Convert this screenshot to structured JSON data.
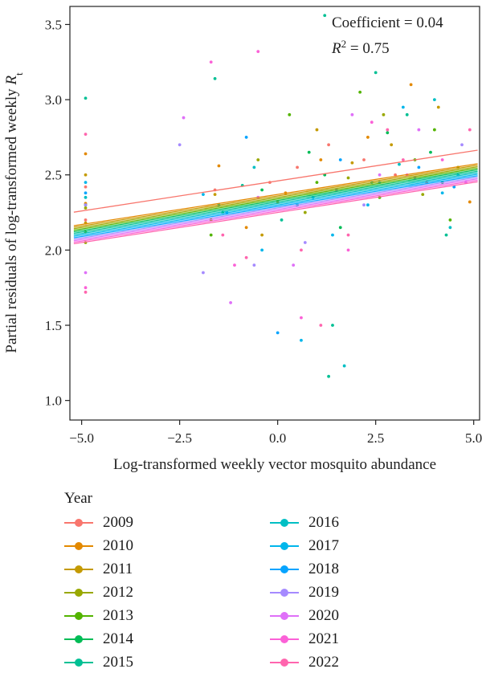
{
  "chart_data": {
    "type": "scatter",
    "xlabel": "Log-transformed weekly vector mosquito abundance",
    "ylabel_main": "Partial residuals of log-transformed weekly ",
    "ylabel_var": "R",
    "ylabel_sub": "t",
    "xlim": [
      -5.3,
      5.15
    ],
    "ylim": [
      0.87,
      3.62
    ],
    "x_ticks": [
      -5.0,
      -2.5,
      0.0,
      2.5,
      5.0
    ],
    "x_tick_labels": [
      "−5.0",
      "−2.5",
      "0.0",
      "2.5",
      "5.0"
    ],
    "y_ticks": [
      1.0,
      1.5,
      2.0,
      2.5,
      3.0,
      3.5
    ],
    "y_tick_labels": [
      "1.0",
      "1.5",
      "2.0",
      "2.5",
      "3.0",
      "3.5"
    ],
    "annotation": {
      "coefficient": "Coefficient = 0.04",
      "r2_prefix": "R",
      "r2_sup": "2",
      "r2_suffix": " = 0.75"
    },
    "legend_title": "Year",
    "slope": 0.04,
    "series": [
      {
        "name": "2009",
        "color": "#F8766D",
        "intercept": 2.46,
        "points": [
          [
            -4.9,
            2.42
          ],
          [
            -4.9,
            2.2
          ],
          [
            -1.6,
            2.4
          ],
          [
            -0.2,
            2.45
          ],
          [
            0.5,
            2.55
          ],
          [
            1.3,
            2.7
          ],
          [
            2.2,
            2.6
          ],
          [
            3.0,
            2.5
          ],
          [
            3.8,
            2.45
          ]
        ]
      },
      {
        "name": "2010",
        "color": "#E38900",
        "intercept": 2.37,
        "points": [
          [
            -4.9,
            2.64
          ],
          [
            -4.9,
            2.31
          ],
          [
            -1.5,
            2.56
          ],
          [
            0.2,
            2.38
          ],
          [
            1.1,
            2.6
          ],
          [
            2.3,
            2.75
          ],
          [
            3.4,
            3.1
          ],
          [
            4.9,
            2.32
          ],
          [
            -0.8,
            2.15
          ]
        ]
      },
      {
        "name": "2011",
        "color": "#C49A00",
        "intercept": 2.36,
        "points": [
          [
            -4.9,
            2.5
          ],
          [
            -4.9,
            2.18
          ],
          [
            -1.6,
            2.37
          ],
          [
            0.0,
            2.32
          ],
          [
            1.0,
            2.8
          ],
          [
            1.9,
            2.58
          ],
          [
            2.9,
            2.7
          ],
          [
            4.1,
            2.95
          ],
          [
            -0.4,
            2.1
          ]
        ]
      },
      {
        "name": "2012",
        "color": "#99A800",
        "intercept": 2.35,
        "points": [
          [
            -4.9,
            2.28
          ],
          [
            -4.9,
            2.05
          ],
          [
            -1.7,
            2.2
          ],
          [
            -0.5,
            2.6
          ],
          [
            0.7,
            2.25
          ],
          [
            1.8,
            2.48
          ],
          [
            2.7,
            2.9
          ],
          [
            3.7,
            2.37
          ],
          [
            4.6,
            2.55
          ]
        ]
      },
      {
        "name": "2013",
        "color": "#53B400",
        "intercept": 2.34,
        "points": [
          [
            -4.9,
            2.12
          ],
          [
            -1.7,
            2.1
          ],
          [
            0.3,
            2.9
          ],
          [
            1.0,
            2.45
          ],
          [
            2.1,
            3.05
          ],
          [
            2.6,
            2.35
          ],
          [
            3.5,
            2.6
          ],
          [
            4.0,
            2.8
          ],
          [
            4.4,
            2.2
          ]
        ]
      },
      {
        "name": "2014",
        "color": "#00BC56",
        "intercept": 2.33,
        "points": [
          [
            -4.9,
            2.3
          ],
          [
            -1.4,
            2.25
          ],
          [
            -0.4,
            2.4
          ],
          [
            0.8,
            2.65
          ],
          [
            1.2,
            2.5
          ],
          [
            1.6,
            2.15
          ],
          [
            2.8,
            2.78
          ],
          [
            3.9,
            2.65
          ],
          [
            4.2,
            2.45
          ]
        ]
      },
      {
        "name": "2015",
        "color": "#00C094",
        "intercept": 2.32,
        "points": [
          [
            -4.9,
            3.01
          ],
          [
            -1.6,
            3.14
          ],
          [
            -0.9,
            2.43
          ],
          [
            0.1,
            2.2
          ],
          [
            1.2,
            3.56
          ],
          [
            1.4,
            1.5
          ],
          [
            2.5,
            3.18
          ],
          [
            3.3,
            2.9
          ],
          [
            4.3,
            2.1
          ],
          [
            1.3,
            1.16
          ]
        ]
      },
      {
        "name": "2016",
        "color": "#00BFC4",
        "intercept": 2.31,
        "points": [
          [
            -4.9,
            2.35
          ],
          [
            -1.5,
            2.3
          ],
          [
            -0.6,
            2.55
          ],
          [
            0.5,
            2.3
          ],
          [
            1.7,
            1.23
          ],
          [
            2.4,
            2.45
          ],
          [
            3.1,
            2.57
          ],
          [
            4.0,
            3.0
          ],
          [
            4.4,
            2.15
          ]
        ]
      },
      {
        "name": "2017",
        "color": "#00B6EB",
        "intercept": 2.3,
        "points": [
          [
            -4.9,
            2.45
          ],
          [
            -1.9,
            2.37
          ],
          [
            -0.4,
            2.0
          ],
          [
            0.6,
            1.4
          ],
          [
            1.4,
            2.1
          ],
          [
            2.3,
            2.3
          ],
          [
            3.2,
            2.95
          ],
          [
            4.2,
            2.38
          ],
          [
            4.6,
            2.5
          ]
        ]
      },
      {
        "name": "2018",
        "color": "#06A4FF",
        "intercept": 2.29,
        "points": [
          [
            -4.9,
            2.38
          ],
          [
            -1.3,
            2.25
          ],
          [
            -0.8,
            2.75
          ],
          [
            0.0,
            1.45
          ],
          [
            0.9,
            2.35
          ],
          [
            1.6,
            2.6
          ],
          [
            2.6,
            2.45
          ],
          [
            3.6,
            2.55
          ],
          [
            4.5,
            2.42
          ]
        ]
      },
      {
        "name": "2019",
        "color": "#A58AFF",
        "intercept": 2.28,
        "points": [
          [
            -4.9,
            2.3
          ],
          [
            -2.5,
            2.7
          ],
          [
            -1.9,
            1.85
          ],
          [
            -0.6,
            1.9
          ],
          [
            0.7,
            2.05
          ],
          [
            1.5,
            2.4
          ],
          [
            2.2,
            2.3
          ],
          [
            3.5,
            2.48
          ],
          [
            4.7,
            2.7
          ]
        ]
      },
      {
        "name": "2020",
        "color": "#DF70F8",
        "intercept": 2.27,
        "points": [
          [
            -4.9,
            1.85
          ],
          [
            -2.4,
            2.88
          ],
          [
            -1.2,
            1.65
          ],
          [
            -0.5,
            2.35
          ],
          [
            0.4,
            1.9
          ],
          [
            1.9,
            2.9
          ],
          [
            2.6,
            2.5
          ],
          [
            3.6,
            2.8
          ],
          [
            4.8,
            2.45
          ]
        ]
      },
      {
        "name": "2021",
        "color": "#FB61D7",
        "intercept": 2.26,
        "points": [
          [
            -4.9,
            1.75
          ],
          [
            -1.7,
            3.25
          ],
          [
            -1.1,
            1.9
          ],
          [
            -0.5,
            3.32
          ],
          [
            0.6,
            1.55
          ],
          [
            1.8,
            2.0
          ],
          [
            2.4,
            2.85
          ],
          [
            3.3,
            2.5
          ],
          [
            4.2,
            2.6
          ]
        ]
      },
      {
        "name": "2022",
        "color": "#FF65AE",
        "intercept": 2.25,
        "points": [
          [
            -4.9,
            2.77
          ],
          [
            -4.9,
            1.72
          ],
          [
            -1.4,
            2.1
          ],
          [
            -0.8,
            1.95
          ],
          [
            0.6,
            2.0
          ],
          [
            1.1,
            1.5
          ],
          [
            1.8,
            2.1
          ],
          [
            2.8,
            2.8
          ],
          [
            3.2,
            2.6
          ],
          [
            4.9,
            2.8
          ]
        ]
      }
    ]
  }
}
